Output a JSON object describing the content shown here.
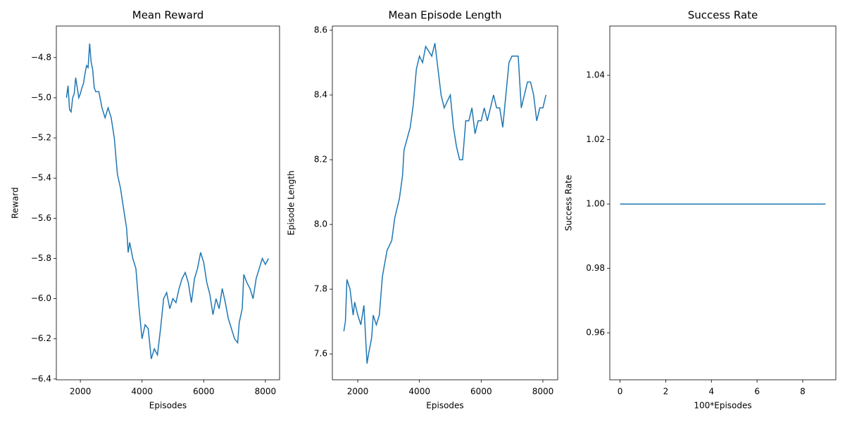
{
  "chart_data": [
    {
      "type": "line",
      "title": "Mean Reward",
      "x_label": "Episodes",
      "y_label": "Reward",
      "color": "#1f77b4",
      "x": [
        1550,
        1600,
        1650,
        1700,
        1750,
        1800,
        1850,
        1900,
        1950,
        2000,
        2050,
        2100,
        2150,
        2200,
        2250,
        2300,
        2350,
        2400,
        2450,
        2500,
        2600,
        2700,
        2800,
        2900,
        3000,
        3100,
        3200,
        3300,
        3400,
        3500,
        3550,
        3600,
        3700,
        3800,
        3900,
        4000,
        4100,
        4200,
        4300,
        4400,
        4500,
        4600,
        4700,
        4800,
        4900,
        5000,
        5100,
        5200,
        5300,
        5400,
        5500,
        5600,
        5700,
        5800,
        5900,
        6000,
        6100,
        6200,
        6300,
        6400,
        6500,
        6600,
        6700,
        6800,
        6900,
        7000,
        7100,
        7150,
        7250,
        7300,
        7400,
        7500,
        7600,
        7700,
        7800,
        7900,
        8000,
        8100
      ],
      "values": [
        -5.0,
        -4.94,
        -5.06,
        -5.07,
        -5.0,
        -4.98,
        -4.9,
        -4.95,
        -5.0,
        -4.98,
        -4.95,
        -4.93,
        -4.88,
        -4.84,
        -4.85,
        -4.73,
        -4.82,
        -4.86,
        -4.95,
        -4.97,
        -4.97,
        -5.05,
        -5.1,
        -5.05,
        -5.1,
        -5.2,
        -5.38,
        -5.45,
        -5.55,
        -5.65,
        -5.77,
        -5.72,
        -5.8,
        -5.85,
        -6.04,
        -6.2,
        -6.13,
        -6.15,
        -6.3,
        -6.25,
        -6.28,
        -6.15,
        -6.0,
        -5.97,
        -6.05,
        -6.0,
        -6.02,
        -5.95,
        -5.9,
        -5.87,
        -5.92,
        -6.02,
        -5.9,
        -5.85,
        -5.77,
        -5.82,
        -5.92,
        -5.98,
        -6.08,
        -6.0,
        -6.05,
        -5.95,
        -6.02,
        -6.1,
        -6.15,
        -6.2,
        -6.22,
        -6.12,
        -6.05,
        -5.88,
        -5.92,
        -5.95,
        -6.0,
        -5.9,
        -5.85,
        -5.8,
        -5.83,
        -5.8
      ],
      "xlim": [
        1221,
        8459
      ],
      "ylim": [
        -6.404,
        -4.643
      ],
      "xticks": [
        2000,
        4000,
        6000,
        8000
      ],
      "yticks": [
        {
          "value": -6.4,
          "label": "−6.4"
        },
        {
          "value": -6.2,
          "label": "−6.2"
        },
        {
          "value": -6.0,
          "label": "−6.0"
        },
        {
          "value": -5.8,
          "label": "−5.8"
        },
        {
          "value": -5.6,
          "label": "−5.6"
        },
        {
          "value": -5.4,
          "label": "−5.4"
        },
        {
          "value": -5.2,
          "label": "−5.2"
        },
        {
          "value": -5.0,
          "label": "−5.0"
        },
        {
          "value": -4.8,
          "label": "−4.8"
        }
      ]
    },
    {
      "type": "line",
      "title": "Mean Episode Length",
      "x_label": "Episodes",
      "y_label": "Episode Length",
      "color": "#1f77b4",
      "x": [
        1550,
        1600,
        1650,
        1750,
        1850,
        1900,
        2000,
        2100,
        2200,
        2300,
        2350,
        2450,
        2500,
        2600,
        2700,
        2800,
        2950,
        3100,
        3200,
        3350,
        3450,
        3500,
        3700,
        3800,
        3900,
        4000,
        4100,
        4200,
        4400,
        4500,
        4600,
        4700,
        4800,
        4900,
        5000,
        5100,
        5200,
        5300,
        5400,
        5500,
        5600,
        5700,
        5800,
        5900,
        6000,
        6100,
        6200,
        6300,
        6400,
        6500,
        6600,
        6700,
        6800,
        6900,
        7000,
        7100,
        7200,
        7300,
        7400,
        7500,
        7600,
        7700,
        7800,
        7900,
        8000,
        8100
      ],
      "values": [
        7.67,
        7.7,
        7.83,
        7.8,
        7.72,
        7.76,
        7.72,
        7.69,
        7.75,
        7.57,
        7.6,
        7.65,
        7.72,
        7.69,
        7.72,
        7.84,
        7.92,
        7.95,
        8.02,
        8.08,
        8.15,
        8.23,
        8.3,
        8.37,
        8.48,
        8.52,
        8.5,
        8.55,
        8.52,
        8.56,
        8.48,
        8.4,
        8.36,
        8.38,
        8.4,
        8.3,
        8.24,
        8.2,
        8.2,
        8.32,
        8.32,
        8.36,
        8.28,
        8.32,
        8.32,
        8.36,
        8.32,
        8.36,
        8.4,
        8.36,
        8.36,
        8.3,
        8.4,
        8.5,
        8.52,
        8.52,
        8.52,
        8.36,
        8.4,
        8.44,
        8.44,
        8.4,
        8.32,
        8.36,
        8.36,
        8.4
      ],
      "xlim": [
        1177,
        8480
      ],
      "ylim": [
        7.52,
        8.613
      ],
      "xticks": [
        2000,
        4000,
        6000,
        8000
      ],
      "yticks": [
        7.6,
        7.8,
        {
          "value": 8.0,
          "label": "8.0"
        },
        8.2,
        8.4,
        8.6
      ]
    },
    {
      "type": "line",
      "title": "Success Rate",
      "x_label": "100*Episodes",
      "y_label": "Success Rate",
      "color": "#1f77b4",
      "x": [
        0,
        1,
        2,
        3,
        4,
        5,
        6,
        7,
        8,
        9
      ],
      "values": [
        1,
        1,
        1,
        1,
        1,
        1,
        1,
        1,
        1,
        1
      ],
      "xlim": [
        -0.45,
        9.45
      ],
      "ylim": [
        0.9454,
        1.0553
      ],
      "xticks": [
        0,
        2,
        4,
        6,
        8
      ],
      "yticks": [
        0.96,
        0.98,
        {
          "value": 1.0,
          "label": "1.00"
        },
        1.02,
        1.04
      ]
    }
  ]
}
